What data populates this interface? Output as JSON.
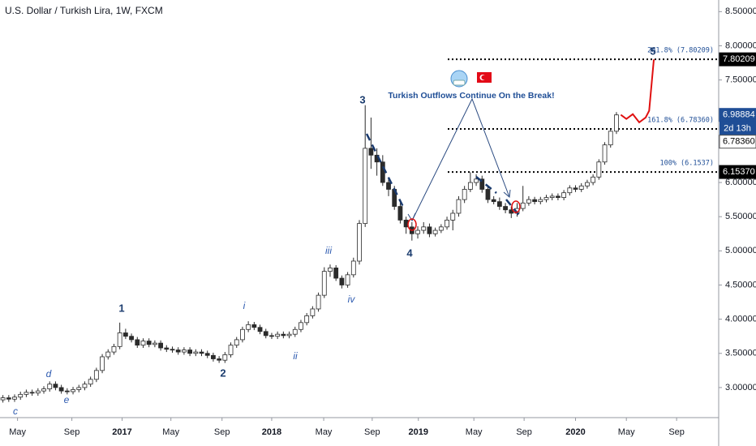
{
  "chart_data": {
    "type": "candlestick",
    "title": "U.S. Dollar / Turkish Lira, 1W, FXCM",
    "open": [
      2.82,
      2.85,
      2.83,
      2.86,
      2.9,
      2.93,
      2.92,
      2.95,
      2.98,
      3.05,
      3.0,
      2.95,
      2.94,
      2.97,
      3.0,
      3.05,
      3.12,
      3.25,
      3.45,
      3.52,
      3.6,
      3.8,
      3.75,
      3.7,
      3.62,
      3.68,
      3.63,
      3.65,
      3.58,
      3.56,
      3.55,
      3.52,
      3.55,
      3.5,
      3.52,
      3.5,
      3.47,
      3.42,
      3.4,
      3.48,
      3.62,
      3.7,
      3.85,
      3.92,
      3.88,
      3.82,
      3.76,
      3.75,
      3.78,
      3.76,
      3.78,
      3.85,
      3.95,
      4.05,
      4.15,
      4.35,
      4.7,
      4.75,
      4.6,
      4.5,
      4.65,
      4.85,
      5.4,
      6.5,
      6.4,
      6.3,
      6.0,
      5.9,
      5.65,
      5.45,
      5.35,
      5.25,
      5.3,
      5.35,
      5.25,
      5.3,
      5.35,
      5.45,
      5.55,
      5.75,
      5.9,
      6.0,
      6.05,
      5.9,
      5.75,
      5.72,
      5.65,
      5.6,
      5.55,
      5.62,
      5.7,
      5.75,
      5.72,
      5.75,
      5.78,
      5.8,
      5.78,
      5.85,
      5.92,
      5.9,
      5.95,
      6.0,
      6.08,
      6.3,
      6.55,
      6.75
    ],
    "high": [
      2.89,
      2.89,
      2.9,
      2.94,
      2.97,
      2.97,
      2.99,
      3.02,
      3.09,
      3.09,
      3.04,
      2.99,
      3.01,
      3.04,
      3.09,
      3.16,
      3.29,
      3.49,
      3.56,
      3.64,
      3.95,
      3.86,
      3.79,
      3.74,
      3.72,
      3.72,
      3.69,
      3.69,
      3.62,
      3.6,
      3.59,
      3.59,
      3.59,
      3.56,
      3.56,
      3.54,
      3.51,
      3.46,
      3.52,
      3.66,
      3.74,
      3.89,
      3.97,
      3.96,
      3.92,
      3.86,
      3.8,
      3.82,
      3.82,
      3.82,
      3.89,
      3.99,
      4.09,
      4.19,
      4.39,
      4.76,
      4.8,
      4.79,
      4.64,
      4.69,
      4.9,
      5.45,
      7.13,
      6.95,
      6.5,
      6.4,
      6.05,
      5.95,
      5.7,
      5.5,
      5.42,
      5.36,
      5.42,
      5.4,
      5.34,
      5.39,
      5.5,
      5.6,
      5.8,
      5.95,
      6.15,
      6.12,
      6.1,
      5.95,
      5.8,
      5.78,
      5.7,
      5.65,
      5.7,
      5.95,
      5.8,
      5.79,
      5.79,
      5.82,
      5.84,
      5.84,
      5.89,
      5.96,
      5.96,
      5.99,
      6.04,
      6.12,
      6.34,
      6.59,
      6.79,
      7.03
    ],
    "low": [
      2.78,
      2.79,
      2.79,
      2.82,
      2.86,
      2.88,
      2.88,
      2.91,
      2.94,
      2.96,
      2.91,
      2.9,
      2.9,
      2.93,
      2.96,
      3.01,
      3.08,
      3.21,
      3.41,
      3.48,
      3.56,
      3.71,
      3.66,
      3.58,
      3.58,
      3.59,
      3.59,
      3.54,
      3.52,
      3.51,
      3.48,
      3.48,
      3.46,
      3.46,
      3.46,
      3.43,
      3.38,
      3.36,
      3.36,
      3.44,
      3.58,
      3.66,
      3.81,
      3.84,
      3.78,
      3.72,
      3.71,
      3.71,
      3.72,
      3.72,
      3.74,
      3.81,
      3.91,
      4.01,
      4.11,
      4.31,
      4.62,
      4.56,
      4.45,
      4.46,
      4.61,
      4.8,
      5.35,
      6.2,
      6.1,
      5.95,
      5.8,
      5.6,
      5.4,
      5.25,
      5.15,
      5.18,
      5.25,
      5.2,
      5.21,
      5.26,
      5.31,
      5.3,
      5.5,
      5.7,
      5.86,
      5.95,
      5.85,
      5.7,
      5.68,
      5.6,
      5.55,
      5.48,
      5.5,
      5.58,
      5.66,
      5.68,
      5.68,
      5.71,
      5.74,
      5.74,
      5.74,
      5.81,
      5.86,
      5.86,
      5.91,
      5.96,
      6.04,
      6.26,
      6.51,
      6.71
    ],
    "close": [
      2.85,
      2.83,
      2.86,
      2.9,
      2.93,
      2.92,
      2.95,
      2.98,
      3.05,
      3.0,
      2.95,
      2.94,
      2.97,
      3.0,
      3.05,
      3.12,
      3.25,
      3.45,
      3.52,
      3.6,
      3.8,
      3.75,
      3.7,
      3.62,
      3.68,
      3.63,
      3.65,
      3.58,
      3.56,
      3.55,
      3.52,
      3.55,
      3.5,
      3.52,
      3.5,
      3.47,
      3.42,
      3.4,
      3.48,
      3.62,
      3.7,
      3.85,
      3.92,
      3.88,
      3.82,
      3.76,
      3.75,
      3.78,
      3.76,
      3.78,
      3.85,
      3.95,
      4.05,
      4.15,
      4.35,
      4.7,
      4.75,
      4.6,
      4.5,
      4.65,
      4.85,
      5.4,
      6.5,
      6.4,
      6.3,
      6.0,
      5.9,
      5.65,
      5.45,
      5.35,
      5.25,
      5.3,
      5.35,
      5.25,
      5.3,
      5.35,
      5.45,
      5.55,
      5.75,
      5.9,
      6.0,
      6.05,
      5.9,
      5.75,
      5.72,
      5.65,
      5.6,
      5.55,
      5.62,
      5.7,
      5.75,
      5.72,
      5.75,
      5.78,
      5.8,
      5.78,
      5.85,
      5.92,
      5.9,
      5.95,
      6.0,
      6.08,
      6.3,
      6.55,
      6.75,
      6.98884
    ],
    "up_color": "#ffffff",
    "down_color": "#2b2b2b",
    "xlim": [
      -0.5,
      122.5
    ],
    "xticks": [
      {
        "value": 2.5,
        "label": "May"
      },
      {
        "value": 11.8,
        "label": "Sep"
      },
      {
        "value": 20.4,
        "label": "2017"
      },
      {
        "value": 28.75,
        "label": "May"
      },
      {
        "value": 37.5,
        "label": "Sep"
      },
      {
        "value": 46,
        "label": "2018"
      },
      {
        "value": 54.9,
        "label": "May"
      },
      {
        "value": 63.2,
        "label": "Sep"
      },
      {
        "value": 71.1,
        "label": "2019"
      },
      {
        "value": 80.6,
        "label": "May"
      },
      {
        "value": 89.2,
        "label": "Sep"
      },
      {
        "value": 98,
        "label": "2020"
      },
      {
        "value": 106.7,
        "label": "May"
      },
      {
        "value": 115.3,
        "label": "Sep"
      }
    ],
    "ylim": [
      2.56,
      8.67
    ],
    "yticks": [
      {
        "value": 3,
        "label": "3.00000"
      },
      {
        "value": 3.5,
        "label": "3.50000"
      },
      {
        "value": 4,
        "label": "4.00000"
      },
      {
        "value": 4.5,
        "label": "4.50000"
      },
      {
        "value": 5,
        "label": "5.00000"
      },
      {
        "value": 5.5,
        "label": "5.50000"
      },
      {
        "value": 6,
        "label": "6.00000"
      },
      {
        "value": 7.5,
        "label": "7.50000"
      },
      {
        "value": 8,
        "label": "8.00000"
      },
      {
        "value": 8.5,
        "label": "8.50000"
      }
    ],
    "fib_levels": [
      {
        "value": 7.80209,
        "label": "261.8% (7.80209)"
      },
      {
        "value": 6.7836,
        "label": "161.8% (6.78360)"
      },
      {
        "value": 6.1537,
        "label": "100% (6.1537)"
      }
    ],
    "price_labels": [
      {
        "value": 7.80209,
        "label": "7.80209",
        "color": "#000000"
      },
      {
        "value": 6.98884,
        "label": "6.98884",
        "color": "#1f4e96"
      },
      {
        "value": 6.7836,
        "label": "6.78360",
        "color": "#ffffff"
      },
      {
        "value": 6.1537,
        "label": "6.15370",
        "color": "#000000"
      }
    ],
    "countdown": "2d 13h",
    "projection": {
      "color": "#e01010",
      "x": [
        105.75,
        106.7,
        107.8,
        108.9,
        110,
        110.6,
        111.4
      ],
      "values": [
        6.99,
        6.93,
        7.0,
        6.88,
        6.95,
        7.05,
        7.8
      ]
    },
    "annotation": "Turkish Outflows Continue On the Break!",
    "wave_labels": [
      "1",
      "2",
      "3",
      "4",
      "5",
      "i",
      "ii",
      "iii",
      "iv",
      "c",
      "d",
      "e"
    ]
  }
}
